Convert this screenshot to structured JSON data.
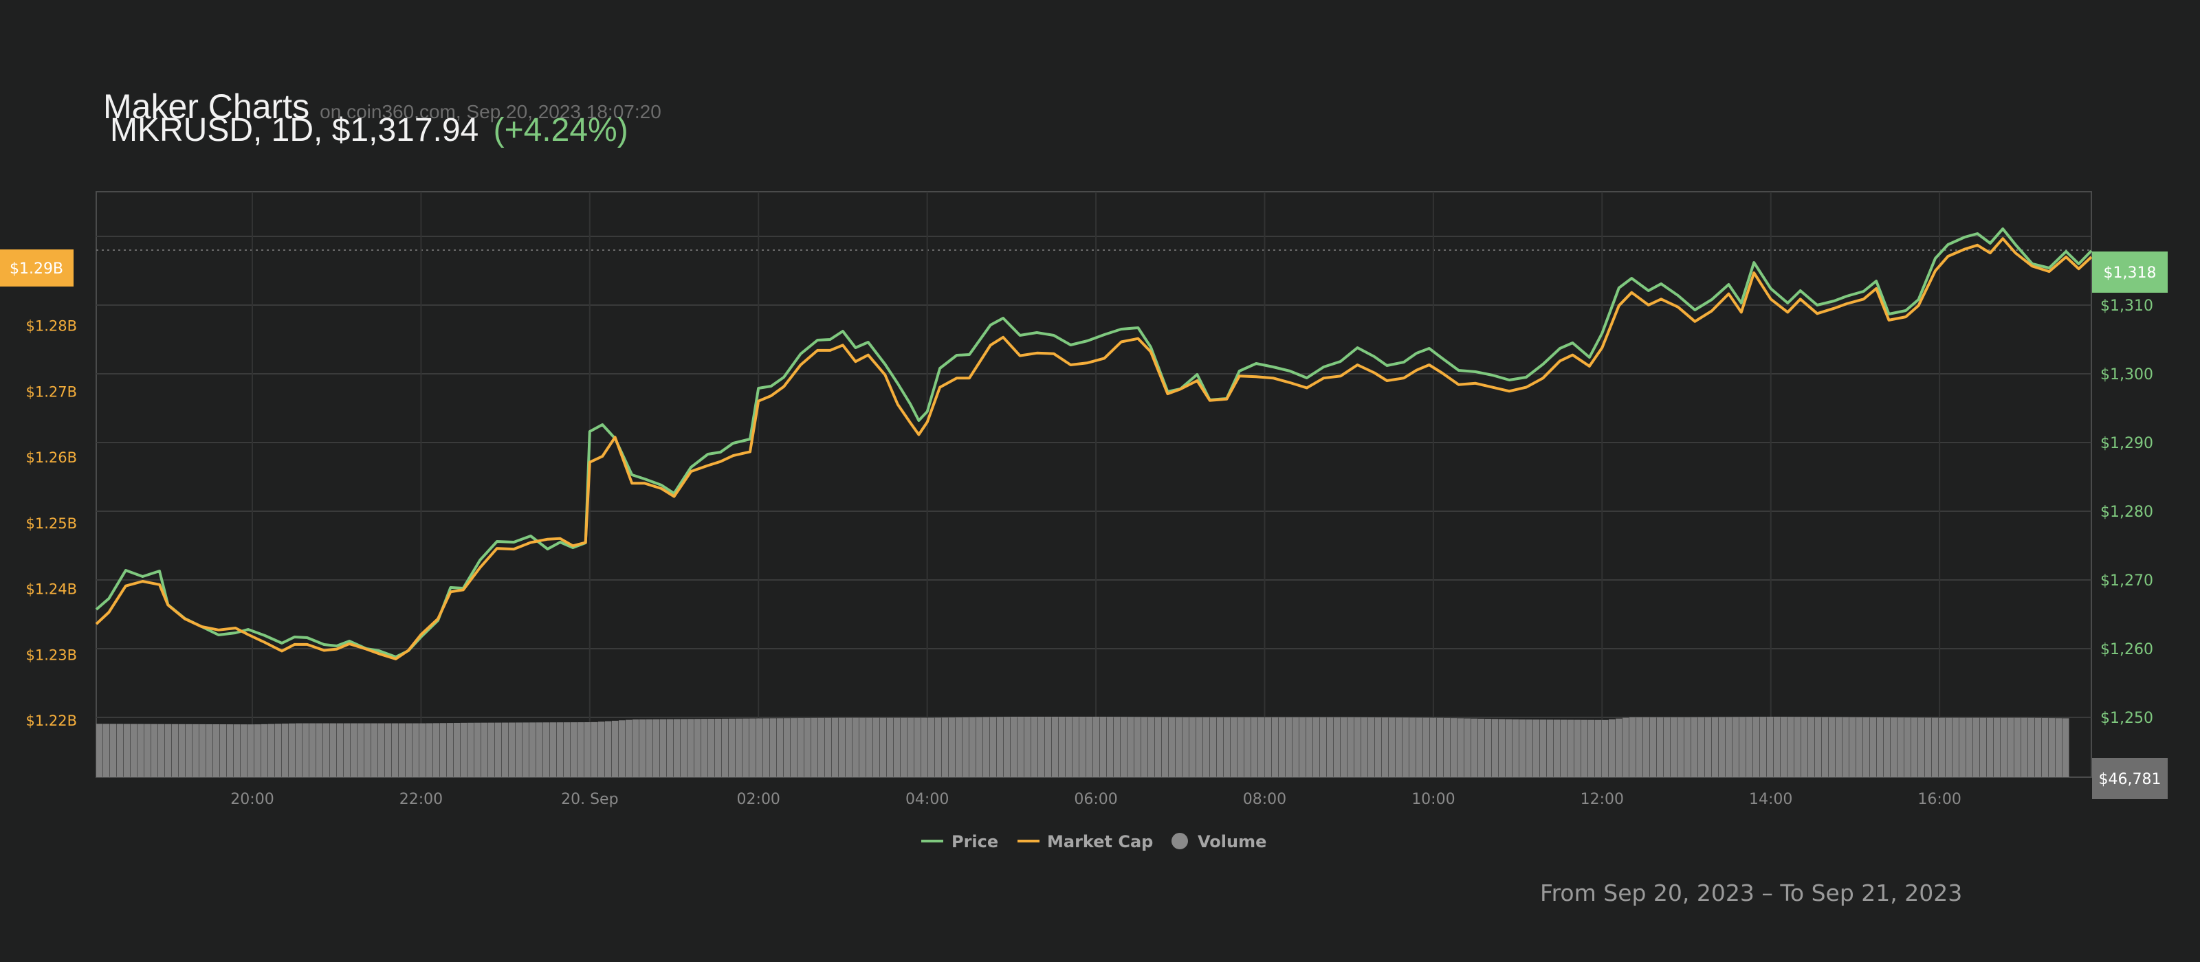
{
  "header": {
    "title": "Maker Charts",
    "source": "on coin360.com, Sep 20, 2023 18:07:20",
    "subtitle": "MKRUSD, 1D, $1,317.94",
    "change": "(+4.24%)"
  },
  "footer": {
    "date_range": "From Sep 20, 2023 – To Sep 21, 2023"
  },
  "colors": {
    "price": "#7fc97f",
    "market_cap": "#f5ae3b",
    "volume": "#808080",
    "background": "#1f2020",
    "grid": "#3a3b3b"
  },
  "chart_data": {
    "type": "line",
    "x_tick_labels": [
      "20:00",
      "22:00",
      "20. Sep",
      "02:00",
      "04:00",
      "06:00",
      "08:00",
      "10:00",
      "12:00",
      "14:00",
      "16:00"
    ],
    "x_tick_hours": [
      20,
      22,
      24,
      26,
      28,
      30,
      32,
      34,
      36,
      38,
      40
    ],
    "x_range_hours": [
      18.15,
      41.8
    ],
    "left_axis": {
      "labels": [
        "$1.22B",
        "$1.23B",
        "$1.24B",
        "$1.25B",
        "$1.26B",
        "$1.27B",
        "$1.28B"
      ],
      "values": [
        1.22,
        1.23,
        1.24,
        1.25,
        1.26,
        1.27,
        1.28
      ],
      "current_label": "$1.29B"
    },
    "right_axis": {
      "labels": [
        "$1,250",
        "$1,260",
        "$1,270",
        "$1,280",
        "$1,290",
        "$1,300",
        "$1,310"
      ],
      "values": [
        1250,
        1260,
        1270,
        1280,
        1290,
        1300,
        1310
      ],
      "range": [
        1241.3,
        1326.5
      ],
      "current_label": "$1,318",
      "current_value": 1318
    },
    "volume_label": "$46,781",
    "grid": true,
    "legend_position": "bottom-center",
    "series": [
      {
        "name": "Price",
        "x_hours": [
          18.15,
          18.3,
          18.5,
          18.7,
          18.9,
          19.0,
          19.2,
          19.4,
          19.6,
          19.8,
          19.95,
          20.15,
          20.35,
          20.5,
          20.65,
          20.85,
          21.0,
          21.15,
          21.35,
          21.5,
          21.7,
          21.85,
          22.0,
          22.2,
          22.35,
          22.5,
          22.7,
          22.9,
          23.1,
          23.3,
          23.5,
          23.65,
          23.8,
          23.95,
          24.0,
          24.15,
          24.3,
          24.5,
          24.65,
          24.85,
          25.0,
          25.2,
          25.4,
          25.55,
          25.7,
          25.9,
          26.0,
          26.15,
          26.3,
          26.5,
          26.7,
          26.85,
          27.0,
          27.15,
          27.3,
          27.5,
          27.65,
          27.8,
          27.9,
          28.0,
          28.15,
          28.35,
          28.5,
          28.75,
          28.9,
          29.1,
          29.3,
          29.5,
          29.7,
          29.9,
          30.1,
          30.3,
          30.5,
          30.65,
          30.85,
          31.0,
          31.2,
          31.35,
          31.55,
          31.7,
          31.9,
          32.1,
          32.3,
          32.5,
          32.7,
          32.9,
          33.1,
          33.3,
          33.45,
          33.65,
          33.8,
          33.95,
          34.1,
          34.3,
          34.5,
          34.7,
          34.9,
          35.1,
          35.3,
          35.5,
          35.65,
          35.85,
          36.0,
          36.2,
          36.35,
          36.55,
          36.7,
          36.9,
          37.1,
          37.3,
          37.5,
          37.65,
          37.8,
          38.0,
          38.2,
          38.35,
          38.55,
          38.75,
          38.9,
          39.1,
          39.25,
          39.4,
          39.6,
          39.75,
          39.95,
          40.1,
          40.3,
          40.45,
          40.6,
          40.75,
          40.9,
          41.1,
          41.3,
          41.5,
          41.65,
          41.8
        ],
        "values": [
          1265.7,
          1267.3,
          1271.4,
          1270.5,
          1271.3,
          1266.4,
          1264.4,
          1263.2,
          1262.0,
          1262.3,
          1262.8,
          1261.9,
          1260.8,
          1261.7,
          1261.6,
          1260.6,
          1260.4,
          1261.1,
          1260.0,
          1259.7,
          1258.8,
          1259.7,
          1261.7,
          1264.1,
          1268.9,
          1268.8,
          1272.9,
          1275.6,
          1275.5,
          1276.4,
          1274.5,
          1275.5,
          1274.7,
          1275.4,
          1291.6,
          1292.6,
          1290.6,
          1285.3,
          1284.7,
          1283.8,
          1282.6,
          1286.4,
          1288.3,
          1288.6,
          1289.9,
          1290.5,
          1297.9,
          1298.2,
          1299.5,
          1302.9,
          1304.9,
          1305.0,
          1306.2,
          1303.8,
          1304.6,
          1301.4,
          1298.6,
          1295.6,
          1293.2,
          1294.5,
          1300.8,
          1302.7,
          1302.8,
          1307.1,
          1308.1,
          1305.6,
          1306.0,
          1305.6,
          1304.2,
          1304.8,
          1305.7,
          1306.5,
          1306.7,
          1303.9,
          1297.4,
          1297.8,
          1299.9,
          1296.2,
          1296.4,
          1300.4,
          1301.5,
          1301.0,
          1300.4,
          1299.4,
          1301.0,
          1301.8,
          1303.8,
          1302.5,
          1301.2,
          1301.7,
          1303.0,
          1303.7,
          1302.3,
          1300.5,
          1300.3,
          1299.8,
          1299.1,
          1299.5,
          1301.4,
          1303.7,
          1304.5,
          1302.4,
          1305.9,
          1312.5,
          1313.9,
          1312.1,
          1313.1,
          1311.4,
          1309.3,
          1310.8,
          1313.0,
          1310.3,
          1316.2,
          1312.4,
          1310.3,
          1312.1,
          1310.0,
          1310.6,
          1311.3,
          1312.0,
          1313.5,
          1308.7,
          1309.2,
          1310.8,
          1316.8,
          1318.8,
          1319.9,
          1320.4,
          1319.0,
          1321.1,
          1318.8,
          1316.0,
          1315.4,
          1317.8,
          1316.0,
          1317.9
        ]
      },
      {
        "name": "Market Cap",
        "x_hours": [
          18.15,
          18.3,
          18.5,
          18.7,
          18.9,
          19.0,
          19.2,
          19.4,
          19.6,
          19.8,
          19.95,
          20.15,
          20.35,
          20.5,
          20.65,
          20.85,
          21.0,
          21.15,
          21.35,
          21.5,
          21.7,
          21.85,
          22.0,
          22.2,
          22.35,
          22.5,
          22.7,
          22.9,
          23.1,
          23.3,
          23.5,
          23.65,
          23.8,
          23.95,
          24.0,
          24.15,
          24.3,
          24.5,
          24.65,
          24.85,
          25.0,
          25.2,
          25.4,
          25.55,
          25.7,
          25.9,
          26.0,
          26.15,
          26.3,
          26.5,
          26.7,
          26.85,
          27.0,
          27.15,
          27.3,
          27.5,
          27.65,
          27.8,
          27.9,
          28.0,
          28.15,
          28.35,
          28.5,
          28.75,
          28.9,
          29.1,
          29.3,
          29.5,
          29.7,
          29.9,
          30.1,
          30.3,
          30.5,
          30.65,
          30.85,
          31.0,
          31.2,
          31.35,
          31.55,
          31.7,
          31.9,
          32.1,
          32.3,
          32.5,
          32.7,
          32.9,
          33.1,
          33.3,
          33.45,
          33.65,
          33.8,
          33.95,
          34.1,
          34.3,
          34.5,
          34.7,
          34.9,
          35.1,
          35.3,
          35.5,
          35.65,
          35.85,
          36.0,
          36.2,
          36.35,
          36.55,
          36.7,
          36.9,
          37.1,
          37.3,
          37.5,
          37.65,
          37.8,
          38.0,
          38.2,
          38.35,
          38.55,
          38.75,
          38.9,
          39.1,
          39.25,
          39.4,
          39.6,
          39.75,
          39.95,
          40.1,
          40.3,
          40.45,
          40.6,
          40.75,
          40.9,
          41.1,
          41.3,
          41.5,
          41.65,
          41.8
        ],
        "values": [
          1.2346,
          1.2364,
          1.2404,
          1.2411,
          1.2406,
          1.2375,
          1.2354,
          1.2342,
          1.2337,
          1.234,
          1.233,
          1.2318,
          1.2305,
          1.2315,
          1.2315,
          1.2306,
          1.2308,
          1.2316,
          1.2308,
          1.2301,
          1.2293,
          1.2306,
          1.233,
          1.2354,
          1.2395,
          1.2398,
          1.2432,
          1.2461,
          1.246,
          1.247,
          1.2475,
          1.2476,
          1.2465,
          1.247,
          1.2592,
          1.2601,
          1.263,
          1.256,
          1.256,
          1.2552,
          1.254,
          1.2578,
          1.2587,
          1.2593,
          1.2602,
          1.2608,
          1.2685,
          1.2693,
          1.2707,
          1.274,
          1.2762,
          1.2762,
          1.277,
          1.2745,
          1.2755,
          1.2725,
          1.268,
          1.2652,
          1.2634,
          1.2653,
          1.2706,
          1.272,
          1.272,
          1.277,
          1.2782,
          1.2754,
          1.2758,
          1.2757,
          1.274,
          1.2743,
          1.275,
          1.2775,
          1.278,
          1.276,
          1.2696,
          1.2703,
          1.2716,
          1.2686,
          1.2688,
          1.2723,
          1.2722,
          1.272,
          1.2713,
          1.2705,
          1.272,
          1.2723,
          1.274,
          1.2728,
          1.2716,
          1.272,
          1.2732,
          1.274,
          1.2728,
          1.271,
          1.2712,
          1.2706,
          1.27,
          1.2706,
          1.272,
          1.2746,
          1.2755,
          1.2738,
          1.2766,
          1.283,
          1.285,
          1.2831,
          1.284,
          1.2828,
          1.2806,
          1.2822,
          1.2848,
          1.282,
          1.288,
          1.284,
          1.282,
          1.284,
          1.2818,
          1.2826,
          1.2833,
          1.284,
          1.2856,
          1.2808,
          1.2813,
          1.283,
          1.2883,
          1.2905,
          1.2916,
          1.2922,
          1.291,
          1.2932,
          1.291,
          1.289,
          1.2882,
          1.2904,
          1.2886,
          1.2904
        ]
      },
      {
        "name": "Volume",
        "x_hours": [
          18.15,
          20.0,
          20.5,
          22.0,
          22.5,
          24.0,
          24.5,
          26.0,
          27.0,
          28.0,
          29.0,
          30.0,
          31.0,
          32.0,
          33.0,
          34.0,
          35.0,
          36.0,
          36.3,
          37.0,
          38.0,
          39.0,
          40.0,
          41.0,
          41.5
        ],
        "values": [
          0.97,
          0.96,
          0.98,
          0.98,
          0.99,
          1.0,
          1.05,
          1.07,
          1.08,
          1.08,
          1.1,
          1.1,
          1.09,
          1.09,
          1.09,
          1.08,
          1.05,
          1.04,
          1.09,
          1.09,
          1.1,
          1.09,
          1.08,
          1.08,
          1.07
        ]
      }
    ]
  }
}
